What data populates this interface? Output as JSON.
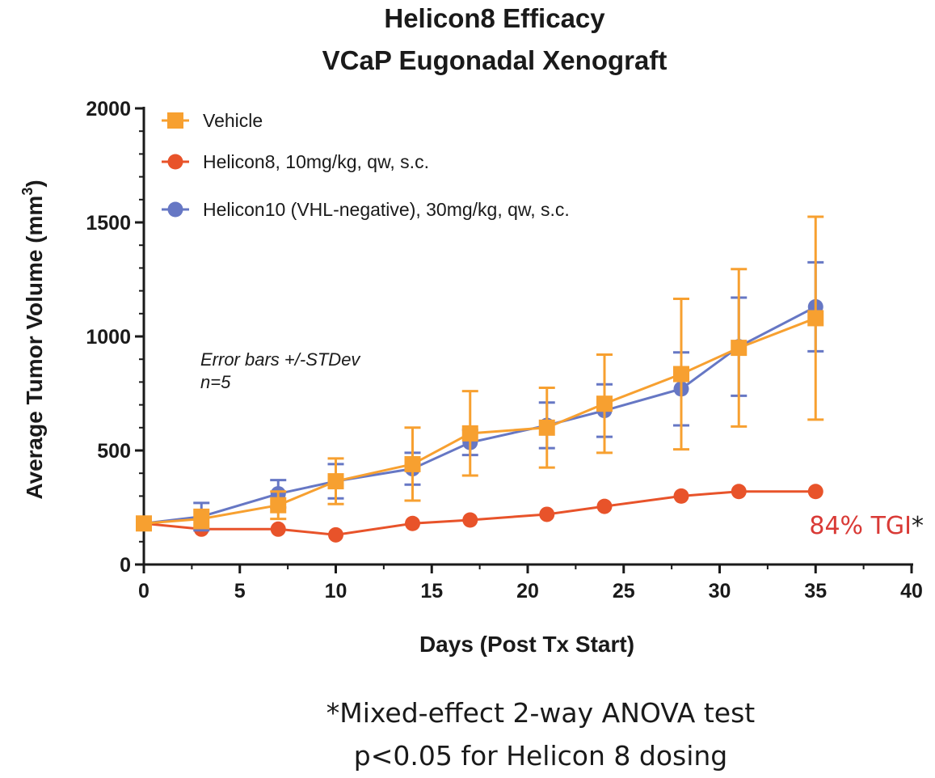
{
  "chart_data": {
    "type": "line",
    "title_line1": "Helicon8 Efficacy",
    "title_line2": "VCaP Eugonadal Xenograft",
    "xlabel": "Days (Post Tx Start)",
    "ylabel_main": "Average Tumor Volume (mm",
    "ylabel_sup": "3",
    "ylabel_end": ")",
    "xlim": [
      0,
      40
    ],
    "ylim": [
      0,
      2000
    ],
    "x_ticks": [
      "0",
      "5",
      "10",
      "15",
      "20",
      "25",
      "30",
      "35",
      "40"
    ],
    "y_ticks": [
      "0",
      "500",
      "1000",
      "1500",
      "2000"
    ],
    "grid": false,
    "legend_position": "top-left",
    "series": [
      {
        "name": "Vehicle",
        "color": "#F7A030",
        "marker": "square",
        "x": [
          0,
          3,
          7,
          10,
          14,
          17,
          21,
          24,
          28,
          31,
          35
        ],
        "y": [
          180,
          200,
          260,
          365,
          440,
          575,
          600,
          705,
          835,
          950,
          1080
        ],
        "err": [
          0,
          40,
          60,
          100,
          160,
          185,
          175,
          215,
          330,
          345,
          445
        ]
      },
      {
        "name": "Helicon8, 10mg/kg, qw, s.c.",
        "color": "#E8532A",
        "marker": "circle",
        "x": [
          0,
          3,
          7,
          10,
          14,
          17,
          21,
          24,
          28,
          31,
          35
        ],
        "y": [
          180,
          155,
          155,
          130,
          180,
          195,
          220,
          255,
          300,
          320,
          320
        ],
        "err": [
          0,
          0,
          0,
          0,
          0,
          0,
          0,
          0,
          0,
          0,
          0
        ]
      },
      {
        "name": "Helicon10 (VHL-negative), 30mg/kg, qw, s.c.",
        "color": "#6677C4",
        "marker": "circle",
        "x": [
          0,
          3,
          7,
          10,
          14,
          17,
          21,
          24,
          28,
          31,
          35
        ],
        "y": [
          180,
          210,
          310,
          365,
          420,
          535,
          610,
          675,
          770,
          955,
          1130
        ],
        "err": [
          0,
          60,
          60,
          75,
          70,
          55,
          100,
          115,
          160,
          215,
          195
        ]
      }
    ],
    "annotations": {
      "note_line1": "Error bars +/-STDev",
      "note_line2": "n=5",
      "tgi_value": "84% TGI",
      "tgi_star": "*",
      "tgi_color": "#D93A36"
    },
    "footnote_line1": "*Mixed-effect 2-way ANOVA test",
    "footnote_line2": "p<0.05 for Helicon 8 dosing"
  }
}
